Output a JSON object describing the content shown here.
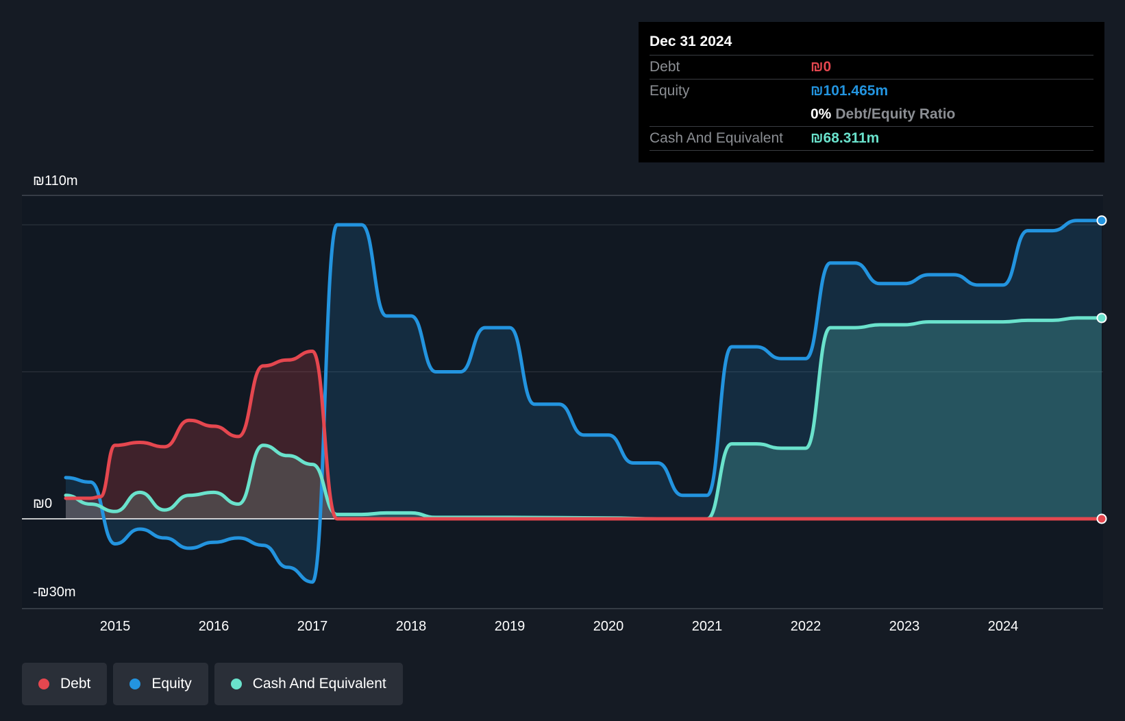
{
  "colors": {
    "debt": "#e5474f",
    "equity": "#2394df",
    "cash": "#6ae2cc",
    "background": "#151b24",
    "plot_background": "#111822"
  },
  "tooltip": {
    "date": "Dec 31 2024",
    "debt_label": "Debt",
    "debt_value": "₪0",
    "equity_label": "Equity",
    "equity_value": "₪101.465m",
    "ratio_value": "0%",
    "ratio_label": "Debt/Equity Ratio",
    "cash_label": "Cash And Equivalent",
    "cash_value": "₪68.311m"
  },
  "legend": {
    "debt": "Debt",
    "equity": "Equity",
    "cash": "Cash And Equivalent"
  },
  "chart_data": {
    "type": "area",
    "title": "",
    "xlabel": "",
    "ylabel": "",
    "y_tick_labels": {
      "top": "₪110m",
      "zero": "₪0",
      "bottom": "-₪30m"
    },
    "ylim": [
      -30,
      110
    ],
    "xlim": [
      2014.5,
      2025.0
    ],
    "x_ticks": [
      "2015",
      "2016",
      "2017",
      "2018",
      "2019",
      "2020",
      "2021",
      "2022",
      "2023",
      "2024"
    ],
    "grid": true,
    "legend_position": "bottom-left",
    "series": [
      {
        "name": "Debt",
        "points": [
          [
            2014.5,
            7
          ],
          [
            2014.75,
            7
          ],
          [
            2014.85,
            7.5
          ],
          [
            2015.0,
            25
          ],
          [
            2015.25,
            26
          ],
          [
            2015.5,
            24.5
          ],
          [
            2015.75,
            33.5
          ],
          [
            2016.0,
            31.5
          ],
          [
            2016.25,
            28
          ],
          [
            2016.5,
            52
          ],
          [
            2016.75,
            54
          ],
          [
            2017.0,
            57
          ],
          [
            2017.25,
            0
          ],
          [
            2017.5,
            0
          ],
          [
            2018.0,
            0
          ],
          [
            2020.0,
            0
          ],
          [
            2021.0,
            0
          ],
          [
            2022.0,
            0
          ],
          [
            2023.0,
            0
          ],
          [
            2024.0,
            0
          ],
          [
            2025.0,
            0
          ]
        ]
      },
      {
        "name": "Equity",
        "points": [
          [
            2014.5,
            14
          ],
          [
            2014.75,
            12.5
          ],
          [
            2015.0,
            -8.5
          ],
          [
            2015.25,
            -3.5
          ],
          [
            2015.5,
            -6.5
          ],
          [
            2015.75,
            -10
          ],
          [
            2016.0,
            -8
          ],
          [
            2016.25,
            -6.5
          ],
          [
            2016.5,
            -9
          ],
          [
            2016.75,
            -16.5
          ],
          [
            2017.0,
            -21.5
          ],
          [
            2017.25,
            100
          ],
          [
            2017.5,
            100
          ],
          [
            2017.75,
            69
          ],
          [
            2018.0,
            69
          ],
          [
            2018.25,
            50
          ],
          [
            2018.5,
            50
          ],
          [
            2018.75,
            65
          ],
          [
            2019.0,
            65
          ],
          [
            2019.25,
            39
          ],
          [
            2019.5,
            39
          ],
          [
            2019.75,
            28.5
          ],
          [
            2020.0,
            28.5
          ],
          [
            2020.25,
            19
          ],
          [
            2020.5,
            19
          ],
          [
            2020.75,
            8
          ],
          [
            2021.0,
            8
          ],
          [
            2021.25,
            58.5
          ],
          [
            2021.5,
            58.5
          ],
          [
            2021.75,
            54.5
          ],
          [
            2022.0,
            54.5
          ],
          [
            2022.25,
            87
          ],
          [
            2022.5,
            87
          ],
          [
            2022.75,
            80
          ],
          [
            2023.0,
            80
          ],
          [
            2023.25,
            83
          ],
          [
            2023.5,
            83
          ],
          [
            2023.75,
            79.5
          ],
          [
            2024.0,
            79.5
          ],
          [
            2024.25,
            98
          ],
          [
            2024.5,
            98
          ],
          [
            2024.75,
            101.465
          ],
          [
            2025.0,
            101.465
          ]
        ]
      },
      {
        "name": "Cash And Equivalent",
        "points": [
          [
            2014.5,
            8
          ],
          [
            2014.75,
            5
          ],
          [
            2015.0,
            2.5
          ],
          [
            2015.25,
            9
          ],
          [
            2015.5,
            3
          ],
          [
            2015.75,
            8
          ],
          [
            2016.0,
            9
          ],
          [
            2016.25,
            5
          ],
          [
            2016.5,
            25
          ],
          [
            2016.75,
            21.5
          ],
          [
            2017.0,
            18.5
          ],
          [
            2017.25,
            1.5
          ],
          [
            2017.5,
            1.5
          ],
          [
            2017.75,
            2
          ],
          [
            2018.0,
            2
          ],
          [
            2018.25,
            0.5
          ],
          [
            2019.0,
            0.5
          ],
          [
            2020.0,
            0.3
          ],
          [
            2020.5,
            0
          ],
          [
            2021.0,
            0
          ],
          [
            2021.25,
            25.5
          ],
          [
            2021.5,
            25.5
          ],
          [
            2021.75,
            24
          ],
          [
            2022.0,
            24
          ],
          [
            2022.25,
            65
          ],
          [
            2022.5,
            65
          ],
          [
            2022.75,
            66
          ],
          [
            2023.0,
            66
          ],
          [
            2023.25,
            67
          ],
          [
            2023.5,
            67
          ],
          [
            2024.0,
            67
          ],
          [
            2024.25,
            67.5
          ],
          [
            2024.5,
            67.5
          ],
          [
            2024.75,
            68.311
          ],
          [
            2025.0,
            68.311
          ]
        ]
      }
    ]
  }
}
